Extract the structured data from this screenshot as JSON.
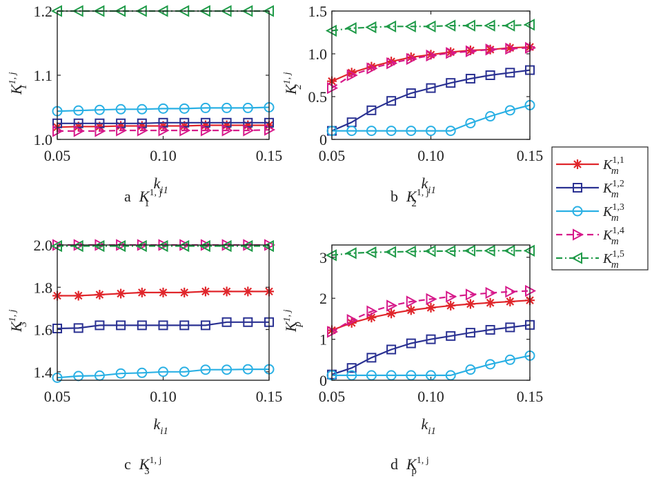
{
  "legend": [
    {
      "key": "s1",
      "label": "K",
      "sub": "m",
      "sup": "1,1",
      "color": "#e0262b",
      "marker": "star",
      "dash": ""
    },
    {
      "key": "s2",
      "label": "K",
      "sub": "m",
      "sup": "1,2",
      "color": "#2a3192",
      "marker": "square",
      "dash": ""
    },
    {
      "key": "s3",
      "label": "K",
      "sub": "m",
      "sup": "1,3",
      "color": "#2ab0e4",
      "marker": "circle",
      "dash": ""
    },
    {
      "key": "s4",
      "label": "K",
      "sub": "m",
      "sup": "1,4",
      "color": "#d6198a",
      "marker": "triangle-right",
      "dash": "9,6"
    },
    {
      "key": "s5",
      "label": "K",
      "sub": "m",
      "sup": "1,5",
      "color": "#1f9a48",
      "marker": "triangle-left",
      "dash": "9,4,2,4"
    }
  ],
  "chart_data": [
    {
      "type": "line",
      "caption": {
        "letter": "a",
        "main": "K",
        "sub": "1",
        "sup": "1, j"
      },
      "ylabel": {
        "main": "K",
        "sub": "1",
        "sup": "1, j"
      },
      "xlabel": {
        "main": "k",
        "sub": "i1"
      },
      "x": [
        0.05,
        0.06,
        0.07,
        0.08,
        0.09,
        0.1,
        0.11,
        0.12,
        0.13,
        0.14,
        0.15
      ],
      "xlim": [
        0.05,
        0.15
      ],
      "ylim": [
        1.0,
        1.2
      ],
      "xticks": [
        "0.05",
        "0.10",
        "0.15"
      ],
      "xtick_values": [
        0.05,
        0.1,
        0.15
      ],
      "yticks": [
        "1.0",
        "1.1",
        "1.2"
      ],
      "ytick_values": [
        1.0,
        1.1,
        1.2
      ],
      "series": [
        {
          "key": "s1",
          "values": [
            1.019,
            1.02,
            1.02,
            1.021,
            1.021,
            1.021,
            1.021,
            1.022,
            1.022,
            1.022,
            1.022
          ]
        },
        {
          "key": "s2",
          "values": [
            1.025,
            1.025,
            1.025,
            1.025,
            1.025,
            1.026,
            1.026,
            1.026,
            1.026,
            1.026,
            1.026
          ]
        },
        {
          "key": "s3",
          "values": [
            1.044,
            1.045,
            1.046,
            1.047,
            1.047,
            1.048,
            1.048,
            1.049,
            1.049,
            1.049,
            1.05
          ]
        },
        {
          "key": "s4",
          "values": [
            1.013,
            1.013,
            1.013,
            1.014,
            1.014,
            1.014,
            1.014,
            1.014,
            1.014,
            1.014,
            1.015
          ]
        },
        {
          "key": "s5",
          "values": [
            1.2,
            1.2,
            1.2,
            1.2,
            1.2,
            1.2,
            1.2,
            1.2,
            1.2,
            1.2,
            1.2
          ]
        }
      ]
    },
    {
      "type": "line",
      "caption": {
        "letter": "b",
        "main": "K",
        "sub": "2",
        "sup": "1, j"
      },
      "ylabel": {
        "main": "K",
        "sub": "2",
        "sup": "1, j"
      },
      "xlabel": {
        "main": "k",
        "sub": "i1"
      },
      "x": [
        0.05,
        0.06,
        0.07,
        0.08,
        0.09,
        0.1,
        0.11,
        0.12,
        0.13,
        0.14,
        0.15
      ],
      "xlim": [
        0.05,
        0.15
      ],
      "ylim": [
        0,
        1.5
      ],
      "xticks": [
        "0.05",
        "0.10",
        "0.15"
      ],
      "xtick_values": [
        0.05,
        0.1,
        0.15
      ],
      "yticks": [
        "0",
        "0.5",
        "1.0",
        "1.5"
      ],
      "ytick_values": [
        0,
        0.5,
        1.0,
        1.5
      ],
      "series": [
        {
          "key": "s1",
          "values": [
            0.68,
            0.78,
            0.85,
            0.91,
            0.96,
            0.99,
            1.02,
            1.04,
            1.05,
            1.07,
            1.08
          ]
        },
        {
          "key": "s2",
          "values": [
            0.1,
            0.2,
            0.34,
            0.45,
            0.54,
            0.6,
            0.66,
            0.71,
            0.75,
            0.78,
            0.81
          ]
        },
        {
          "key": "s3",
          "values": [
            0.1,
            0.1,
            0.1,
            0.1,
            0.1,
            0.1,
            0.1,
            0.19,
            0.27,
            0.34,
            0.4
          ]
        },
        {
          "key": "s4",
          "values": [
            0.6,
            0.75,
            0.83,
            0.89,
            0.94,
            0.98,
            1.01,
            1.03,
            1.05,
            1.06,
            1.07
          ]
        },
        {
          "key": "s5",
          "values": [
            1.27,
            1.3,
            1.31,
            1.32,
            1.32,
            1.32,
            1.33,
            1.33,
            1.33,
            1.33,
            1.34
          ]
        }
      ]
    },
    {
      "type": "line",
      "caption": {
        "letter": "c",
        "main": "K",
        "sub": "3",
        "sup": "1, j"
      },
      "ylabel": {
        "main": "K",
        "sub": "3",
        "sup": "1, j"
      },
      "xlabel": {
        "main": "k",
        "sub": "i1"
      },
      "x": [
        0.05,
        0.06,
        0.07,
        0.08,
        0.09,
        0.1,
        0.11,
        0.12,
        0.13,
        0.14,
        0.15
      ],
      "xlim": [
        0.05,
        0.15
      ],
      "ylim": [
        1.36,
        2.0
      ],
      "xticks": [
        "0.05",
        "0.10",
        "0.15"
      ],
      "xtick_values": [
        0.05,
        0.1,
        0.15
      ],
      "yticks": [
        "1.4",
        "1.6",
        "1.8",
        "2.0"
      ],
      "ytick_values": [
        1.4,
        1.6,
        1.8,
        2.0
      ],
      "series": [
        {
          "key": "s1",
          "values": [
            1.76,
            1.76,
            1.765,
            1.77,
            1.775,
            1.775,
            1.775,
            1.78,
            1.78,
            1.78,
            1.78
          ]
        },
        {
          "key": "s2",
          "values": [
            1.605,
            1.607,
            1.62,
            1.62,
            1.62,
            1.62,
            1.62,
            1.62,
            1.635,
            1.635,
            1.635
          ]
        },
        {
          "key": "s3",
          "values": [
            1.372,
            1.38,
            1.382,
            1.392,
            1.395,
            1.4,
            1.4,
            1.41,
            1.41,
            1.412,
            1.412
          ]
        },
        {
          "key": "s4",
          "values": [
            2.0,
            2.0,
            2.0,
            2.0,
            2.0,
            2.0,
            2.0,
            2.0,
            2.0,
            2.0,
            2.0
          ]
        },
        {
          "key": "s5",
          "values": [
            1.995,
            1.995,
            1.995,
            1.995,
            1.995,
            1.995,
            1.995,
            1.995,
            1.995,
            1.995,
            1.995
          ]
        }
      ]
    },
    {
      "type": "line",
      "caption": {
        "letter": "d",
        "main": "K",
        "sub": "p",
        "sup": "1, j"
      },
      "ylabel": {
        "main": "K",
        "sub": "p",
        "sup": "1, j"
      },
      "xlabel": {
        "main": "k",
        "sub": "i1"
      },
      "x": [
        0.05,
        0.06,
        0.07,
        0.08,
        0.09,
        0.1,
        0.11,
        0.12,
        0.13,
        0.14,
        0.15
      ],
      "xlim": [
        0.05,
        0.15
      ],
      "ylim": [
        0,
        3.3
      ],
      "xticks": [
        "0.05",
        "0.10",
        "0.15"
      ],
      "xtick_values": [
        0.05,
        0.1,
        0.15
      ],
      "yticks": [
        "0",
        "1",
        "2",
        "3"
      ],
      "ytick_values": [
        0,
        1,
        2,
        3
      ],
      "series": [
        {
          "key": "s1",
          "values": [
            1.22,
            1.4,
            1.53,
            1.63,
            1.71,
            1.77,
            1.82,
            1.86,
            1.89,
            1.92,
            1.95
          ]
        },
        {
          "key": "s2",
          "values": [
            0.14,
            0.3,
            0.55,
            0.75,
            0.9,
            1.0,
            1.08,
            1.16,
            1.23,
            1.29,
            1.35
          ]
        },
        {
          "key": "s3",
          "values": [
            0.12,
            0.12,
            0.12,
            0.12,
            0.12,
            0.12,
            0.12,
            0.26,
            0.39,
            0.5,
            0.6
          ]
        },
        {
          "key": "s4",
          "values": [
            1.18,
            1.47,
            1.68,
            1.82,
            1.92,
            1.98,
            2.04,
            2.09,
            2.13,
            2.16,
            2.18
          ]
        },
        {
          "key": "s5",
          "values": [
            3.05,
            3.1,
            3.12,
            3.13,
            3.14,
            3.15,
            3.15,
            3.16,
            3.16,
            3.16,
            3.16
          ]
        }
      ]
    }
  ]
}
